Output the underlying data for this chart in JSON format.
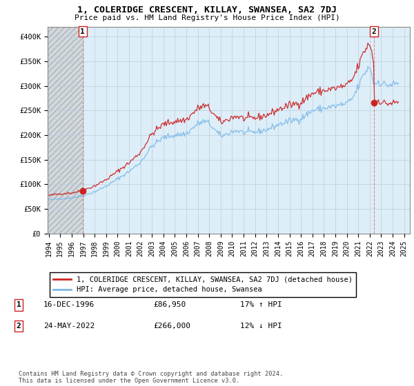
{
  "title": "1, COLERIDGE CRESCENT, KILLAY, SWANSEA, SA2 7DJ",
  "subtitle": "Price paid vs. HM Land Registry's House Price Index (HPI)",
  "xlim": [
    1993.9,
    2025.5
  ],
  "ylim": [
    0,
    420000
  ],
  "yticks": [
    0,
    50000,
    100000,
    150000,
    200000,
    250000,
    300000,
    350000,
    400000
  ],
  "ytick_labels": [
    "£0",
    "£50K",
    "£100K",
    "£150K",
    "£200K",
    "£250K",
    "£300K",
    "£350K",
    "£400K"
  ],
  "xtick_years": [
    1994,
    1995,
    1996,
    1997,
    1998,
    1999,
    2000,
    2001,
    2002,
    2003,
    2004,
    2005,
    2006,
    2007,
    2008,
    2009,
    2010,
    2011,
    2012,
    2013,
    2014,
    2015,
    2016,
    2017,
    2018,
    2019,
    2020,
    2021,
    2022,
    2023,
    2024,
    2025
  ],
  "hpi_color": "#7ab8e8",
  "price_color": "#cc2222",
  "sale1_x": 1996.96,
  "sale1_y": 86950,
  "sale2_x": 2022.38,
  "sale2_y": 266000,
  "sale1_label": "1",
  "sale2_label": "2",
  "legend_line1": "1, COLERIDGE CRESCENT, KILLAY, SWANSEA, SA2 7DJ (detached house)",
  "legend_line2": "HPI: Average price, detached house, Swansea",
  "note1_num": "1",
  "note1_date": "16-DEC-1996",
  "note1_price": "£86,950",
  "note1_hpi": "17% ↑ HPI",
  "note2_num": "2",
  "note2_date": "24-MAY-2022",
  "note2_price": "£266,000",
  "note2_hpi": "12% ↓ HPI",
  "footer": "Contains HM Land Registry data © Crown copyright and database right 2024.\nThis data is licensed under the Open Government Licence v3.0.",
  "plot_bg_color": "#ddeeff",
  "hatch_color": "#bbbbbb",
  "grid_color": "#aaaacc"
}
